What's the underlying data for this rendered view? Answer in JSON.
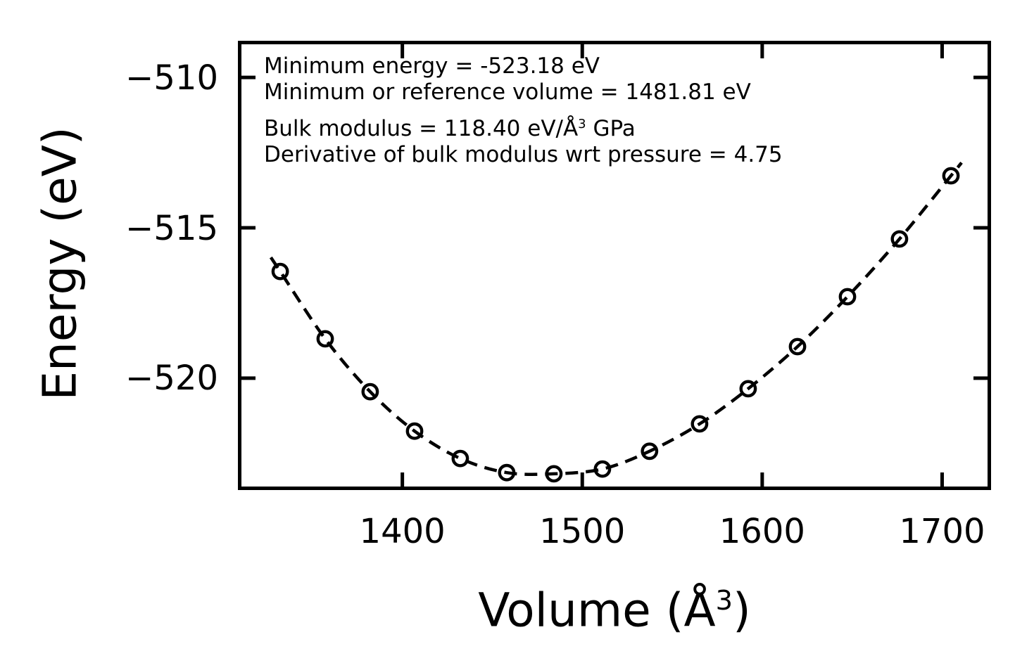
{
  "figure": {
    "colors": {
      "foreground": "#000000",
      "background": "#ffffff"
    },
    "ylabel": "Energy (eV)",
    "xlabel": {
      "prefix": "Volume (Å",
      "sup": "3",
      "suffix": ")"
    },
    "annotations": {
      "line1": "Minimum energy = -523.18 eV",
      "line2": "Minimum or reference volume = 1481.81 eV",
      "line3_prefix": "Bulk modulus = 118.40 eV/Å",
      "line3_sup": "3",
      "line3_suffix": " GPa",
      "line4": "Derivative of bulk modulus wrt pressure = 4.75"
    }
  },
  "chart_data": {
    "type": "scatter",
    "marker": "open-circle",
    "line_style": "dashed-fit-line",
    "color": "#000000",
    "title": "",
    "xlabel": "Volume (Å³)",
    "ylabel": "Energy (eV)",
    "xlim": [
      1308.6,
      1727.2
    ],
    "ylim": [
      -523.72,
      -508.78
    ],
    "grid": false,
    "legend": "none",
    "xticks": {
      "values": [
        1400,
        1500,
        1600,
        1700
      ],
      "labels": [
        "1400",
        "1500",
        "1600",
        "1700"
      ]
    },
    "yticks": {
      "values": [
        -510,
        -515,
        -520
      ],
      "labels": [
        "−510",
        "−515",
        "−520"
      ]
    },
    "series": [
      {
        "name": "energy-volume-data",
        "x": [
          1332.1,
          1357.1,
          1382.1,
          1406.8,
          1432.2,
          1458.0,
          1484.2,
          1511.2,
          1537.4,
          1565.2,
          1592.2,
          1619.6,
          1647.4,
          1676.3,
          1704.9
        ],
        "y": [
          -516.45,
          -518.69,
          -520.45,
          -521.76,
          -522.67,
          -523.14,
          -523.18,
          -523.02,
          -522.43,
          -521.52,
          -520.35,
          -518.95,
          -517.29,
          -515.37,
          -513.27
        ]
      }
    ],
    "fit_results": {
      "min_energy_eV": -523.18,
      "min_or_reference_volume": 1481.81,
      "bulk_modulus": 118.4,
      "bulk_modulus_pressure_derivative": 4.75
    }
  }
}
